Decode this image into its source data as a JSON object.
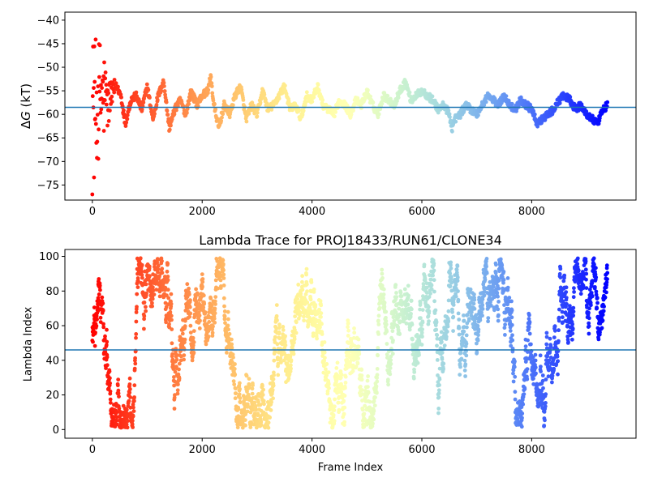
{
  "chart_data": [
    {
      "type": "scatter",
      "title": "",
      "xlabel": "",
      "ylabel": "ΔG (kT)",
      "ylabel_parts": {
        "delta": "Δ",
        "var": "G",
        "unit": " (kT)"
      },
      "xlim": [
        -500,
        9900
      ],
      "ylim": [
        -78.2,
        -38.3
      ],
      "xticks": [
        0,
        2000,
        4000,
        6000,
        8000
      ],
      "xtick_labels": [
        "0",
        "2000",
        "4000",
        "6000",
        "8000"
      ],
      "yticks": [
        -40,
        -45,
        -50,
        -55,
        -60,
        -65,
        -70,
        -75
      ],
      "ytick_labels": [
        "−40",
        "−45",
        "−50",
        "−55",
        "−60",
        "−65",
        "−70",
        "−75"
      ],
      "hline": -58.5,
      "colormap": "rainbow (red at frame 0 → violet at last frame)",
      "n_frames": 9380,
      "trace_anchors": {
        "x": [
          0,
          60,
          120,
          200,
          280,
          360,
          440,
          520,
          600,
          700,
          800,
          900,
          1000,
          1100,
          1200,
          1300,
          1400,
          1500,
          1600,
          1700,
          1800,
          1900,
          2000,
          2100,
          2160,
          2200,
          2300,
          2400,
          2500,
          2600,
          2700,
          2800,
          2900,
          3000,
          3100,
          3200,
          3300,
          3400,
          3500,
          3600,
          3700,
          3800,
          3900,
          4000,
          4100,
          4200,
          4300,
          4400,
          4500,
          4600,
          4700,
          4800,
          4900,
          5000,
          5100,
          5200,
          5300,
          5400,
          5500,
          5600,
          5700,
          5800,
          5900,
          6000,
          6100,
          6200,
          6300,
          6400,
          6500,
          6550,
          6600,
          6700,
          6800,
          6900,
          7000,
          7100,
          7200,
          7300,
          7400,
          7500,
          7600,
          7700,
          7800,
          7900,
          8000,
          8100,
          8200,
          8300,
          8400,
          8500,
          8600,
          8700,
          8800,
          8900,
          9000,
          9100,
          9200,
          9300,
          9380
        ],
        "y": [
          -58,
          -60,
          -57,
          -56,
          -58,
          -55,
          -54,
          -56,
          -62,
          -57,
          -56,
          -59,
          -54,
          -61,
          -56,
          -53,
          -63,
          -59,
          -57,
          -60,
          -55,
          -58,
          -56,
          -55,
          -52,
          -57,
          -63,
          -58,
          -60,
          -56,
          -54,
          -61,
          -58,
          -60,
          -55,
          -59,
          -58,
          -56,
          -54,
          -59,
          -58,
          -61,
          -56,
          -57,
          -54,
          -58,
          -59,
          -60,
          -57,
          -58,
          -60,
          -57,
          -58,
          -55,
          -58,
          -60,
          -56,
          -57,
          -58,
          -55,
          -53,
          -57,
          -56,
          -55,
          -56,
          -57,
          -59,
          -58,
          -60,
          -63,
          -61,
          -60,
          -58,
          -59,
          -60,
          -58,
          -56,
          -57,
          -58,
          -56,
          -58,
          -59,
          -57,
          -58,
          -59,
          -62,
          -61,
          -60,
          -59,
          -57,
          -56,
          -57,
          -59,
          -58,
          -60,
          -61,
          -62,
          -59,
          -58
        ]
      },
      "early_scatter_range": [
        -77,
        -40
      ]
    },
    {
      "type": "scatter",
      "title": "Lambda Trace for PROJ18433/RUN61/CLONE34",
      "xlabel": "Frame Index",
      "ylabel": "Lambda Index",
      "xlim": [
        -500,
        9900
      ],
      "ylim": [
        -5,
        104
      ],
      "xticks": [
        0,
        2000,
        4000,
        6000,
        8000
      ],
      "xtick_labels": [
        "0",
        "2000",
        "4000",
        "6000",
        "8000"
      ],
      "yticks": [
        0,
        20,
        40,
        60,
        80,
        100
      ],
      "ytick_labels": [
        "0",
        "20",
        "40",
        "60",
        "80",
        "100"
      ],
      "hline": 46,
      "value_range": [
        1,
        99
      ],
      "colormap": "rainbow (red at frame 0 → violet at last frame)",
      "n_frames": 9380
    }
  ],
  "colors": {
    "hline": "#1f77b4",
    "axes": "#000000",
    "background": "#ffffff"
  }
}
